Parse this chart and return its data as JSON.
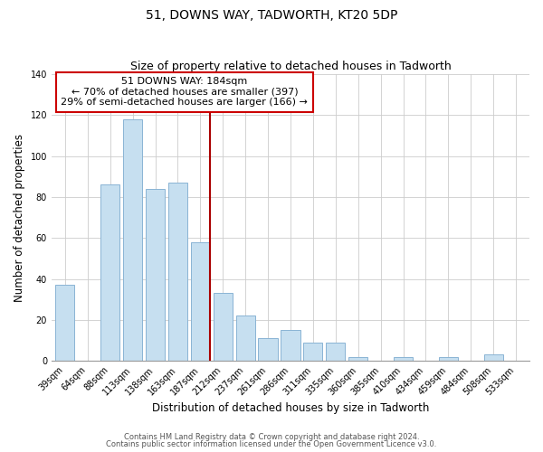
{
  "title": "51, DOWNS WAY, TADWORTH, KT20 5DP",
  "subtitle": "Size of property relative to detached houses in Tadworth",
  "xlabel": "Distribution of detached houses by size in Tadworth",
  "ylabel": "Number of detached properties",
  "bar_labels": [
    "39sqm",
    "64sqm",
    "88sqm",
    "113sqm",
    "138sqm",
    "163sqm",
    "187sqm",
    "212sqm",
    "237sqm",
    "261sqm",
    "286sqm",
    "311sqm",
    "335sqm",
    "360sqm",
    "385sqm",
    "410sqm",
    "434sqm",
    "459sqm",
    "484sqm",
    "508sqm",
    "533sqm"
  ],
  "bar_values": [
    37,
    0,
    86,
    118,
    84,
    87,
    58,
    33,
    22,
    11,
    15,
    9,
    9,
    2,
    0,
    2,
    0,
    2,
    0,
    3,
    0
  ],
  "bar_color": "#c6dff0",
  "bar_edge_color": "#8ab4d4",
  "vline_x_bar_index": 6,
  "vline_color": "#aa0000",
  "annotation_title": "51 DOWNS WAY: 184sqm",
  "annotation_line1": "← 70% of detached houses are smaller (397)",
  "annotation_line2": "29% of semi-detached houses are larger (166) →",
  "ylim": [
    0,
    140
  ],
  "yticks": [
    0,
    20,
    40,
    60,
    80,
    100,
    120,
    140
  ],
  "footnote1": "Contains HM Land Registry data © Crown copyright and database right 2024.",
  "footnote2": "Contains public sector information licensed under the Open Government Licence v3.0.",
  "title_fontsize": 10,
  "subtitle_fontsize": 9,
  "axis_label_fontsize": 8.5,
  "tick_fontsize": 7,
  "annotation_fontsize": 8,
  "footnote_fontsize": 6,
  "background_color": "#ffffff",
  "grid_color": "#cccccc"
}
